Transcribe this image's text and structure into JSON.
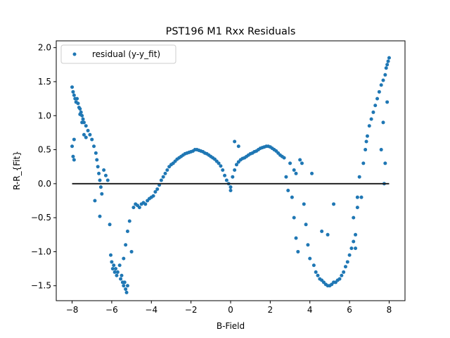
{
  "chart_data": {
    "type": "scatter",
    "title": "PST196 M1 Rxx Residuals",
    "xlabel": "B-Field",
    "ylabel": "R-R_{Fit}",
    "xlim": [
      -8.8,
      8.8
    ],
    "ylim": [
      -1.72,
      2.1
    ],
    "xticks": [
      -8,
      -6,
      -4,
      -2,
      0,
      2,
      4,
      6,
      8
    ],
    "xtick_labels": [
      "−8",
      "−6",
      "−4",
      "−2",
      "0",
      "2",
      "4",
      "6",
      "8"
    ],
    "yticks": [
      -1.5,
      -1.0,
      -0.5,
      0.0,
      0.5,
      1.0,
      1.5,
      2.0
    ],
    "ytick_labels": [
      "−1.5",
      "−1.0",
      "−0.5",
      "0.0",
      "0.5",
      "1.0",
      "1.5",
      "2.0"
    ],
    "grid": false,
    "legend": {
      "position": "top-left",
      "entries": [
        "residual (y-y_fit)"
      ]
    },
    "colors": {
      "points": "#1f77b4",
      "zero_line": "#222222"
    },
    "series": [
      {
        "name": "residual (y-y_fit)",
        "points": [
          [
            -8.0,
            1.42
          ],
          [
            -7.95,
            1.35
          ],
          [
            -7.9,
            1.3
          ],
          [
            -7.85,
            1.25
          ],
          [
            -7.8,
            1.2
          ],
          [
            -7.75,
            1.25
          ],
          [
            -7.7,
            1.18
          ],
          [
            -7.65,
            1.12
          ],
          [
            -7.6,
            1.1
          ],
          [
            -7.55,
            1.05
          ],
          [
            -7.5,
            1.0
          ],
          [
            -7.45,
            0.95
          ],
          [
            -7.4,
            0.9
          ],
          [
            -7.3,
            0.85
          ],
          [
            -7.2,
            0.78
          ],
          [
            -7.1,
            0.72
          ],
          [
            -7.0,
            0.65
          ],
          [
            -6.9,
            0.55
          ],
          [
            -6.8,
            0.45
          ],
          [
            -6.75,
            0.35
          ],
          [
            -6.7,
            0.25
          ],
          [
            -6.65,
            0.15
          ],
          [
            -6.6,
            0.05
          ],
          [
            -6.55,
            -0.05
          ],
          [
            -6.5,
            -0.15
          ],
          [
            -8.0,
            0.55
          ],
          [
            -7.95,
            0.4
          ],
          [
            -7.9,
            0.35
          ],
          [
            -7.9,
            0.65
          ],
          [
            -7.6,
            1.02
          ],
          [
            -7.5,
            0.9
          ],
          [
            -7.4,
            0.72
          ],
          [
            -7.3,
            0.68
          ],
          [
            -6.85,
            -0.25
          ],
          [
            -6.6,
            -0.48
          ],
          [
            -6.4,
            0.2
          ],
          [
            -6.3,
            0.12
          ],
          [
            -6.2,
            0.05
          ],
          [
            -6.1,
            -0.6
          ],
          [
            -6.05,
            -1.05
          ],
          [
            -6.0,
            -1.15
          ],
          [
            -5.95,
            -1.25
          ],
          [
            -5.9,
            -1.2
          ],
          [
            -5.85,
            -1.3
          ],
          [
            -5.8,
            -1.25
          ],
          [
            -5.75,
            -1.35
          ],
          [
            -5.7,
            -1.3
          ],
          [
            -5.6,
            -1.2
          ],
          [
            -5.55,
            -1.4
          ],
          [
            -5.5,
            -1.35
          ],
          [
            -5.45,
            -1.45
          ],
          [
            -5.4,
            -1.5
          ],
          [
            -5.35,
            -1.45
          ],
          [
            -5.3,
            -1.55
          ],
          [
            -5.25,
            -1.6
          ],
          [
            -5.2,
            -1.5
          ],
          [
            -5.4,
            -1.1
          ],
          [
            -5.3,
            -0.9
          ],
          [
            -5.2,
            -0.7
          ],
          [
            -5.1,
            -0.55
          ],
          [
            -5.0,
            -1.0
          ],
          [
            -4.9,
            -0.35
          ],
          [
            -4.8,
            -0.3
          ],
          [
            -4.7,
            -0.32
          ],
          [
            -4.6,
            -0.35
          ],
          [
            -4.5,
            -0.3
          ],
          [
            -4.4,
            -0.28
          ],
          [
            -4.3,
            -0.3
          ],
          [
            -4.2,
            -0.25
          ],
          [
            -4.1,
            -0.22
          ],
          [
            -4.0,
            -0.2
          ],
          [
            -3.9,
            -0.18
          ],
          [
            -3.8,
            -0.12
          ],
          [
            -3.7,
            -0.08
          ],
          [
            -3.6,
            -0.02
          ],
          [
            -3.5,
            0.05
          ],
          [
            -3.4,
            0.1
          ],
          [
            -3.3,
            0.15
          ],
          [
            -3.2,
            0.2
          ],
          [
            -3.1,
            0.25
          ],
          [
            -3.0,
            0.28
          ],
          [
            -2.9,
            0.3
          ],
          [
            -2.8,
            0.33
          ],
          [
            -2.7,
            0.36
          ],
          [
            -2.6,
            0.38
          ],
          [
            -2.5,
            0.4
          ],
          [
            -2.4,
            0.42
          ],
          [
            -2.3,
            0.44
          ],
          [
            -2.2,
            0.45
          ],
          [
            -2.1,
            0.46
          ],
          [
            -2.0,
            0.47
          ],
          [
            -1.9,
            0.48
          ],
          [
            -1.8,
            0.5
          ],
          [
            -1.7,
            0.5
          ],
          [
            -1.6,
            0.49
          ],
          [
            -1.5,
            0.48
          ],
          [
            -1.4,
            0.47
          ],
          [
            -1.3,
            0.45
          ],
          [
            -1.2,
            0.44
          ],
          [
            -1.1,
            0.42
          ],
          [
            -1.0,
            0.4
          ],
          [
            -0.9,
            0.38
          ],
          [
            -0.8,
            0.36
          ],
          [
            -0.7,
            0.33
          ],
          [
            -0.6,
            0.3
          ],
          [
            -0.5,
            0.26
          ],
          [
            -0.4,
            0.2
          ],
          [
            -0.3,
            0.12
          ],
          [
            -0.2,
            0.05
          ],
          [
            -0.1,
            0.0
          ],
          [
            0.0,
            -0.05
          ],
          [
            0.0,
            -0.1
          ],
          [
            0.1,
            0.1
          ],
          [
            0.2,
            0.2
          ],
          [
            0.3,
            0.28
          ],
          [
            0.4,
            0.32
          ],
          [
            0.5,
            0.35
          ],
          [
            0.6,
            0.37
          ],
          [
            0.7,
            0.38
          ],
          [
            0.8,
            0.4
          ],
          [
            0.9,
            0.42
          ],
          [
            1.0,
            0.44
          ],
          [
            1.1,
            0.45
          ],
          [
            1.2,
            0.47
          ],
          [
            1.3,
            0.48
          ],
          [
            1.4,
            0.5
          ],
          [
            1.5,
            0.52
          ],
          [
            1.6,
            0.53
          ],
          [
            1.7,
            0.54
          ],
          [
            1.8,
            0.55
          ],
          [
            1.9,
            0.55
          ],
          [
            2.0,
            0.54
          ],
          [
            2.1,
            0.52
          ],
          [
            2.2,
            0.5
          ],
          [
            2.3,
            0.48
          ],
          [
            2.4,
            0.45
          ],
          [
            2.5,
            0.42
          ],
          [
            2.6,
            0.4
          ],
          [
            2.7,
            0.38
          ],
          [
            0.2,
            0.62
          ],
          [
            0.4,
            0.55
          ],
          [
            2.8,
            0.1
          ],
          [
            2.9,
            -0.1
          ],
          [
            3.0,
            0.3
          ],
          [
            3.1,
            -0.2
          ],
          [
            3.2,
            0.2
          ],
          [
            3.2,
            -0.5
          ],
          [
            3.3,
            0.15
          ],
          [
            3.3,
            -0.8
          ],
          [
            3.4,
            -1.0
          ],
          [
            3.5,
            0.35
          ],
          [
            3.6,
            0.3
          ],
          [
            3.7,
            -0.3
          ],
          [
            3.8,
            -0.6
          ],
          [
            3.9,
            -0.9
          ],
          [
            4.0,
            -1.1
          ],
          [
            4.1,
            0.15
          ],
          [
            4.2,
            -1.2
          ],
          [
            4.3,
            -1.3
          ],
          [
            4.4,
            -1.35
          ],
          [
            4.5,
            -1.4
          ],
          [
            4.6,
            -1.42
          ],
          [
            4.7,
            -1.45
          ],
          [
            4.8,
            -1.48
          ],
          [
            4.9,
            -1.5
          ],
          [
            5.0,
            -1.5
          ],
          [
            5.1,
            -1.48
          ],
          [
            5.2,
            -1.45
          ],
          [
            5.3,
            -1.45
          ],
          [
            5.4,
            -1.42
          ],
          [
            5.5,
            -1.4
          ],
          [
            5.6,
            -1.35
          ],
          [
            5.7,
            -1.3
          ],
          [
            5.8,
            -1.22
          ],
          [
            5.9,
            -1.15
          ],
          [
            6.0,
            -1.05
          ],
          [
            6.1,
            -0.95
          ],
          [
            6.2,
            -0.85
          ],
          [
            6.3,
            -0.75
          ],
          [
            4.6,
            -0.7
          ],
          [
            4.9,
            -0.75
          ],
          [
            5.2,
            -0.3
          ],
          [
            6.2,
            -0.5
          ],
          [
            6.5,
            0.1
          ],
          [
            6.6,
            -0.2
          ],
          [
            6.7,
            0.3
          ],
          [
            6.8,
            0.5
          ],
          [
            6.9,
            0.7
          ],
          [
            7.0,
            0.85
          ],
          [
            7.1,
            0.95
          ],
          [
            7.2,
            1.05
          ],
          [
            7.3,
            1.15
          ],
          [
            7.4,
            1.25
          ],
          [
            7.5,
            1.35
          ],
          [
            7.6,
            1.45
          ],
          [
            7.7,
            1.52
          ],
          [
            7.8,
            1.6
          ],
          [
            7.85,
            1.7
          ],
          [
            7.9,
            1.75
          ],
          [
            7.95,
            1.8
          ],
          [
            8.0,
            1.85
          ],
          [
            7.7,
            0.9
          ],
          [
            7.8,
            0.3
          ],
          [
            7.75,
            0.0
          ],
          [
            7.9,
            1.2
          ],
          [
            7.6,
            0.5
          ],
          [
            6.85,
            0.62
          ],
          [
            6.4,
            -0.35
          ],
          [
            6.3,
            -0.95
          ],
          [
            6.4,
            -0.2
          ]
        ]
      }
    ],
    "zero_line": {
      "y": 0.0,
      "x_from": -8.0,
      "x_to": 8.0
    }
  }
}
